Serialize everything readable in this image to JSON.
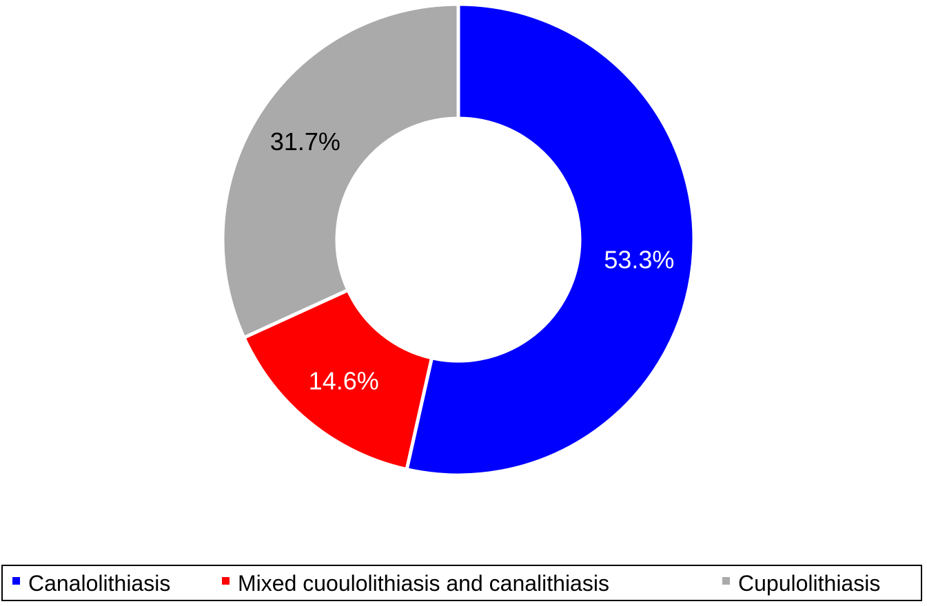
{
  "chart_data": {
    "type": "pie",
    "variant": "donut",
    "title": "",
    "slices": [
      {
        "label": "Canalolithiasis",
        "value": 53.3,
        "value_label": "53.3%",
        "color": "#0000ff",
        "label_color": "#ffffff"
      },
      {
        "label": "Mixed cuoulolithiasis and canalithiasis",
        "value": 14.6,
        "value_label": "14.6%",
        "color": "#ff0000",
        "label_color": "#ffffff"
      },
      {
        "label": "Cupulolithiasis",
        "value": 31.7,
        "value_label": "31.7%",
        "color": "#aaaaaa",
        "label_color": "#000000"
      }
    ],
    "start_angle": "12 o'clock",
    "direction": "clockwise",
    "legend_position": "bottom"
  }
}
